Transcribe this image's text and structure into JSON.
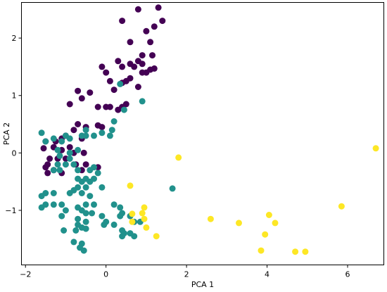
{
  "chart_data": {
    "type": "scatter",
    "xlabel": "PCA 1",
    "ylabel": "PCA 2",
    "xlim": [
      -2.1,
      6.9
    ],
    "ylim": [
      -1.95,
      2.62
    ],
    "xticks": [
      -2,
      0,
      2,
      4,
      6
    ],
    "yticks": [
      -1,
      0,
      1,
      2
    ],
    "xtick_labels": [
      "−2",
      "0",
      "2",
      "4",
      "6"
    ],
    "ytick_labels": [
      "−1",
      "0",
      "1",
      "2"
    ],
    "grid": false,
    "series": [
      {
        "color": "#440154",
        "points": [
          [
            0.8,
            2.5
          ],
          [
            1.3,
            2.53
          ],
          [
            1.4,
            2.3
          ],
          [
            1.2,
            2.2
          ],
          [
            0.4,
            2.3
          ],
          [
            1.0,
            2.12
          ],
          [
            0.6,
            1.93
          ],
          [
            1.1,
            1.93
          ],
          [
            1.15,
            1.7
          ],
          [
            0.9,
            1.7
          ],
          [
            0.3,
            1.6
          ],
          [
            0.8,
            1.6
          ],
          [
            0.9,
            1.55
          ],
          [
            0.6,
            1.55
          ],
          [
            1.0,
            1.4
          ],
          [
            0.9,
            1.4
          ],
          [
            0.4,
            1.5
          ],
          [
            0.7,
            1.5
          ],
          [
            1.1,
            1.45
          ],
          [
            1.2,
            1.47
          ],
          [
            -0.1,
            1.5
          ],
          [
            0.0,
            1.4
          ],
          [
            0.1,
            1.25
          ],
          [
            0.2,
            1.1
          ],
          [
            0.4,
            1.22
          ],
          [
            0.5,
            1.25
          ],
          [
            0.6,
            1.3
          ],
          [
            0.8,
            1.15
          ],
          [
            -0.7,
            1.08
          ],
          [
            -0.4,
            1.05
          ],
          [
            -0.6,
            0.95
          ],
          [
            -0.9,
            0.85
          ],
          [
            0.0,
            0.8
          ],
          [
            0.1,
            0.8
          ],
          [
            0.3,
            0.75
          ],
          [
            0.4,
            0.8
          ],
          [
            0.5,
            0.85
          ],
          [
            -0.2,
            0.8
          ],
          [
            -0.7,
            0.5
          ],
          [
            -0.2,
            0.48
          ],
          [
            -0.5,
            0.45
          ],
          [
            -0.8,
            0.4
          ],
          [
            -0.1,
            0.45
          ],
          [
            -1.0,
            0.3
          ],
          [
            -1.1,
            0.25
          ],
          [
            -1.25,
            0.2
          ],
          [
            -1.3,
            0.1
          ],
          [
            -1.5,
            0.2
          ],
          [
            -1.55,
            0.08
          ],
          [
            -1.1,
            0.05
          ],
          [
            -0.9,
            0.1
          ],
          [
            -0.8,
            0.0
          ],
          [
            -0.6,
            0.25
          ],
          [
            -0.55,
            0.0
          ],
          [
            -1.2,
            -0.1
          ],
          [
            -1.0,
            -0.1
          ],
          [
            -0.75,
            -0.2
          ],
          [
            -0.5,
            -0.2
          ],
          [
            -1.4,
            -0.1
          ],
          [
            -1.45,
            -0.2
          ],
          [
            -1.45,
            -0.35
          ],
          [
            -1.1,
            -0.35
          ],
          [
            -1.3,
            -0.3
          ],
          [
            -0.6,
            -0.3
          ],
          [
            -0.2,
            -0.25
          ],
          [
            -1.5,
            -0.25
          ]
        ]
      },
      {
        "color": "#21918c",
        "points": [
          [
            0.35,
            1.2
          ],
          [
            0.9,
            0.9
          ],
          [
            0.45,
            0.75
          ],
          [
            0.2,
            0.55
          ],
          [
            0.15,
            0.4
          ],
          [
            -0.5,
            0.4
          ],
          [
            -1.6,
            0.35
          ],
          [
            -1.5,
            0.2
          ],
          [
            -1.3,
            0.25
          ],
          [
            -1.1,
            0.2
          ],
          [
            -1.0,
            0.3
          ],
          [
            -0.9,
            0.25
          ],
          [
            -0.6,
            0.3
          ],
          [
            -0.5,
            0.3
          ],
          [
            -0.3,
            0.3
          ],
          [
            -0.1,
            0.35
          ],
          [
            0.1,
            0.3
          ],
          [
            -0.9,
            0.0
          ],
          [
            -1.2,
            0.05
          ],
          [
            -0.7,
            0.05
          ],
          [
            -0.9,
            -0.1
          ],
          [
            -1.15,
            -0.05
          ],
          [
            -1.2,
            -0.2
          ],
          [
            -1.0,
            -0.2
          ],
          [
            -1.15,
            -0.3
          ],
          [
            -0.8,
            -0.2
          ],
          [
            -1.3,
            -0.3
          ],
          [
            -0.7,
            -0.3
          ],
          [
            -0.4,
            -0.3
          ],
          [
            -0.3,
            -0.25
          ],
          [
            -0.2,
            -0.35
          ],
          [
            -0.7,
            -0.45
          ],
          [
            -0.5,
            -0.45
          ],
          [
            -0.3,
            -0.45
          ],
          [
            -0.6,
            -0.5
          ],
          [
            -0.4,
            -0.5
          ],
          [
            -0.7,
            -0.6
          ],
          [
            -0.5,
            -0.6
          ],
          [
            -0.1,
            -0.6
          ],
          [
            -0.8,
            -0.65
          ],
          [
            -1.5,
            -0.7
          ],
          [
            -1.6,
            -0.75
          ],
          [
            -1.3,
            -0.7
          ],
          [
            -0.9,
            -0.7
          ],
          [
            -0.6,
            -0.7
          ],
          [
            -0.4,
            -0.75
          ],
          [
            -1.5,
            -0.9
          ],
          [
            -1.3,
            -0.9
          ],
          [
            -1.1,
            -0.9
          ],
          [
            -0.7,
            -0.95
          ],
          [
            -0.5,
            -0.9
          ],
          [
            -0.3,
            -0.9
          ],
          [
            0.2,
            -0.9
          ],
          [
            0.35,
            -0.95
          ],
          [
            -1.6,
            -0.95
          ],
          [
            -0.6,
            -1.0
          ],
          [
            -0.5,
            -1.05
          ],
          [
            -0.35,
            -1.05
          ],
          [
            0.4,
            -1.05
          ],
          [
            -0.1,
            -1.1
          ],
          [
            -1.1,
            -1.1
          ],
          [
            -0.7,
            -1.15
          ],
          [
            -0.5,
            -1.2
          ],
          [
            -1.0,
            -1.0
          ],
          [
            0.35,
            -1.1
          ],
          [
            0.6,
            -1.1
          ],
          [
            0.7,
            -1.2
          ],
          [
            0.0,
            -1.2
          ],
          [
            0.2,
            -1.25
          ],
          [
            -0.7,
            -1.25
          ],
          [
            -0.6,
            -1.3
          ],
          [
            -0.5,
            -1.32
          ],
          [
            -0.75,
            -1.35
          ],
          [
            0.4,
            -1.35
          ],
          [
            0.85,
            -1.2
          ],
          [
            -1.05,
            -1.35
          ],
          [
            0.45,
            -1.4
          ],
          [
            0.6,
            -1.4
          ],
          [
            0.7,
            -1.45
          ],
          [
            0.4,
            -1.45
          ],
          [
            -0.8,
            -1.55
          ],
          [
            -0.6,
            -1.58
          ],
          [
            -0.65,
            -1.65
          ],
          [
            -0.55,
            -1.7
          ],
          [
            1.65,
            -0.62
          ],
          [
            -0.05,
            -1.25
          ]
        ]
      },
      {
        "color": "#fde725",
        "points": [
          [
            6.7,
            0.08
          ],
          [
            1.8,
            -0.08
          ],
          [
            0.6,
            -0.57
          ],
          [
            0.65,
            -1.06
          ],
          [
            0.65,
            -1.2
          ],
          [
            0.9,
            -1.05
          ],
          [
            0.95,
            -0.95
          ],
          [
            0.95,
            -1.15
          ],
          [
            1.0,
            -1.3
          ],
          [
            1.25,
            -1.45
          ],
          [
            2.6,
            -1.15
          ],
          [
            3.3,
            -1.22
          ],
          [
            4.05,
            -1.08
          ],
          [
            4.2,
            -1.22
          ],
          [
            3.95,
            -1.42
          ],
          [
            5.85,
            -0.93
          ],
          [
            3.85,
            -1.7
          ],
          [
            4.7,
            -1.72
          ],
          [
            4.95,
            -1.72
          ]
        ]
      }
    ]
  }
}
